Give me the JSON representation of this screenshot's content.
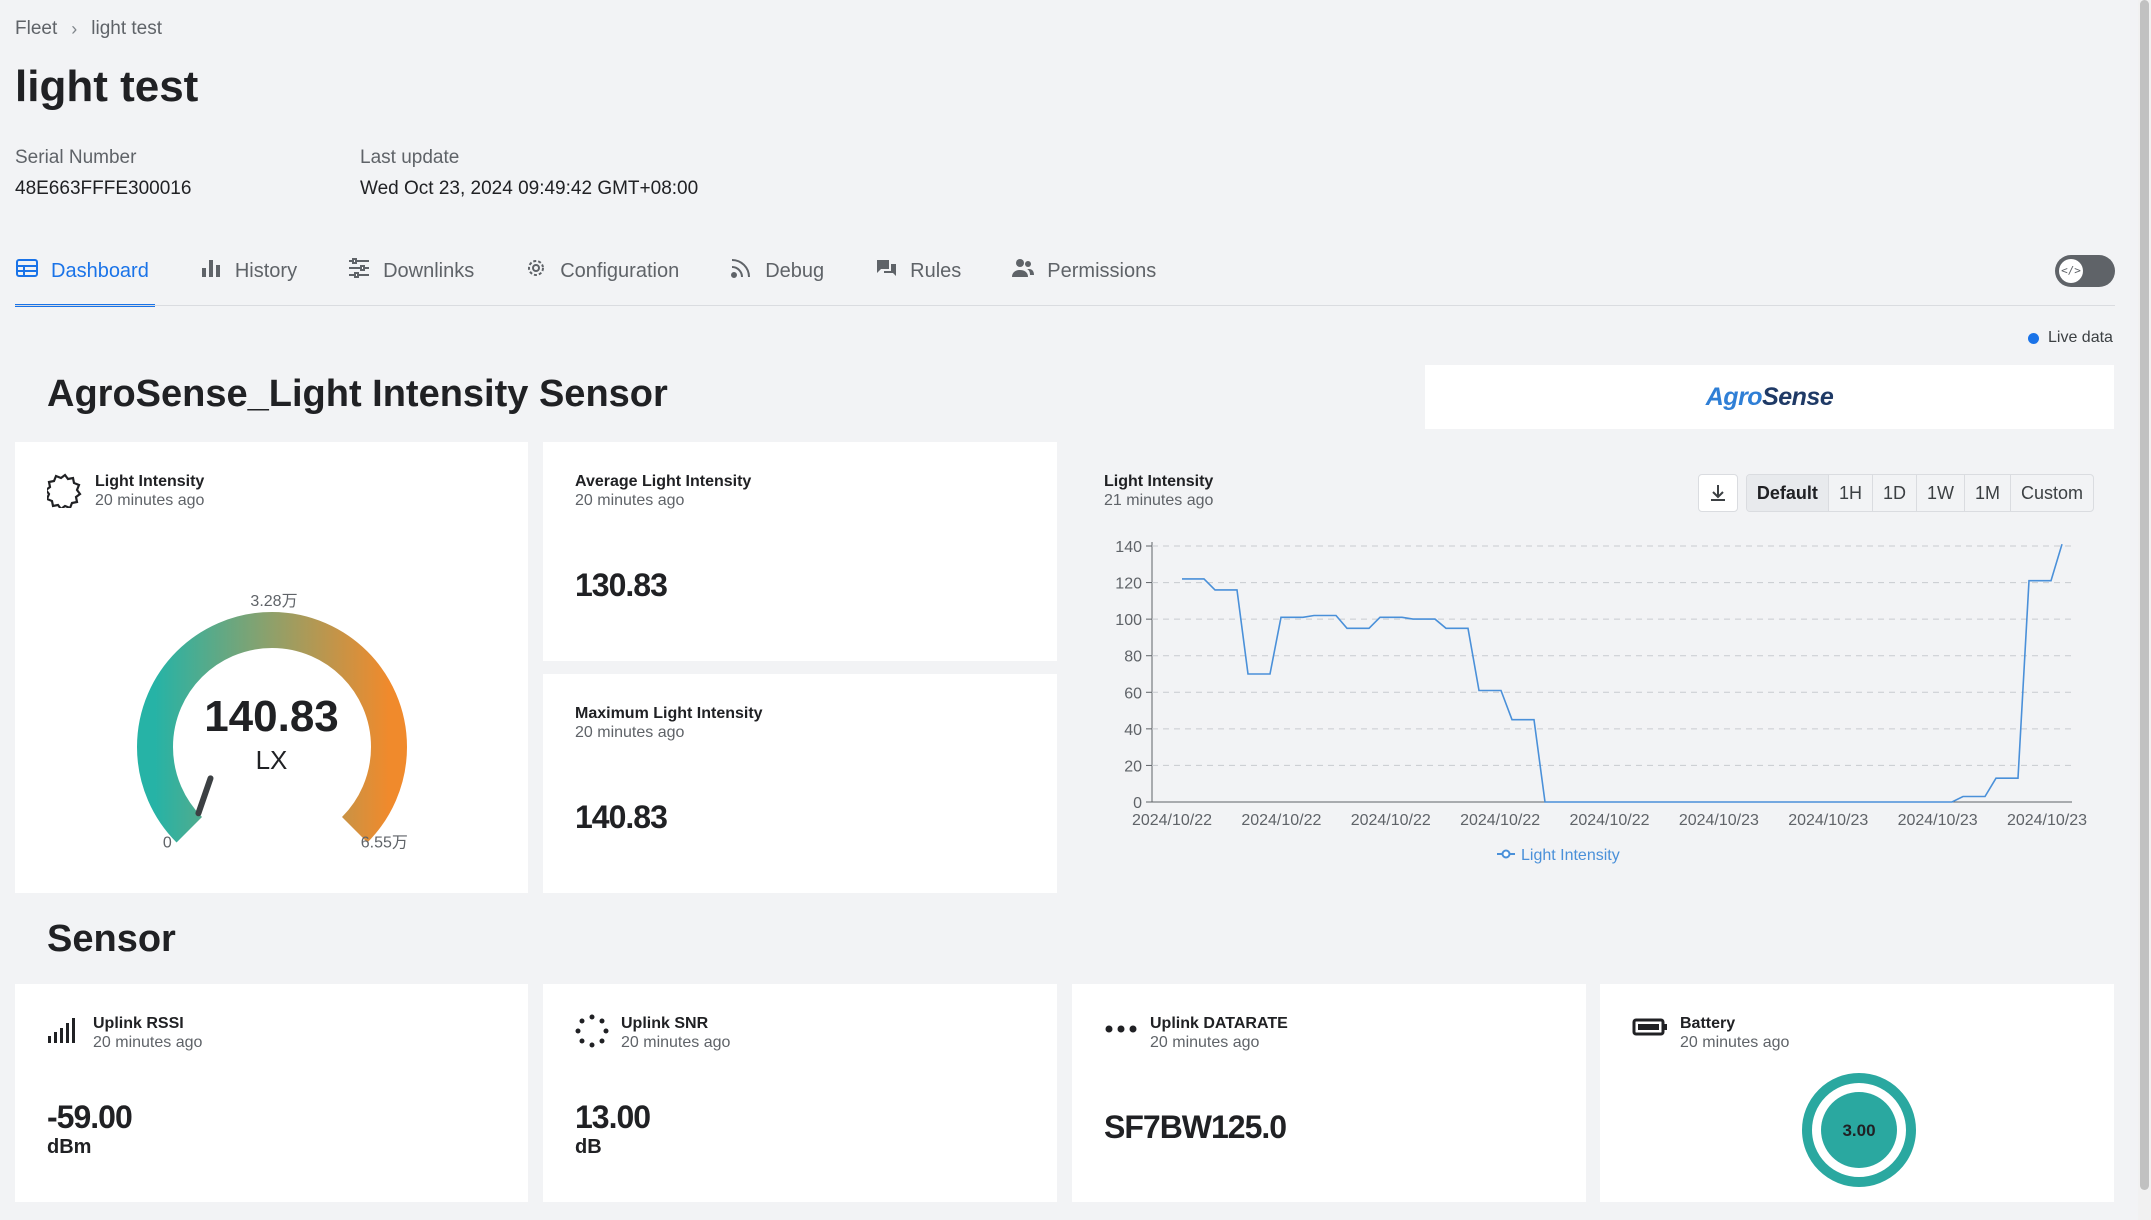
{
  "breadcrumb": {
    "root": "Fleet",
    "current": "light test"
  },
  "page": {
    "title": "light test",
    "serial_label": "Serial Number",
    "serial_value": "48E663FFFE300016",
    "update_label": "Last update",
    "update_value": "Wed Oct 23, 2024 09:49:42 GMT+08:00"
  },
  "tabs": [
    {
      "label": "Dashboard",
      "icon": "table-icon",
      "active": true
    },
    {
      "label": "History",
      "icon": "bar-chart-icon"
    },
    {
      "label": "Downlinks",
      "icon": "sliders-icon"
    },
    {
      "label": "Configuration",
      "icon": "gear-icon"
    },
    {
      "label": "Debug",
      "icon": "rss-icon"
    },
    {
      "label": "Rules",
      "icon": "chat-bubbles-icon"
    },
    {
      "label": "Permissions",
      "icon": "people-icon"
    }
  ],
  "code_toggle": {
    "icon": "code-icon",
    "on": false
  },
  "live": {
    "label": "Live data",
    "color": "#1a73e8"
  },
  "sections": {
    "main": "AgroSense_Light Intensity Sensor",
    "sensor": "Sensor"
  },
  "logo": {
    "text_a": "A",
    "text_gro": "gro",
    "text_sense": "Sense"
  },
  "gauge_card": {
    "title": "Light Intensity",
    "sub": "20 minutes ago",
    "value": "140.83",
    "unit": "LX",
    "min_label": "0",
    "mid_label": "3.28万",
    "max_label": "6.55万",
    "fraction": 0.0021,
    "colors": {
      "start": "#26b3a6",
      "mid": "#8fa06a",
      "end": "#f08a2c"
    }
  },
  "avg_card": {
    "title": "Average Light Intensity",
    "sub": "20 minutes ago",
    "value": "130.83"
  },
  "max_card": {
    "title": "Maximum Light Intensity",
    "sub": "20 minutes ago",
    "value": "140.83"
  },
  "chart_card": {
    "title": "Light Intensity",
    "sub": "21 minutes ago",
    "ranges": [
      "Default",
      "1H",
      "1D",
      "1W",
      "1M",
      "Custom"
    ],
    "active_range": "Default"
  },
  "chart_data": {
    "type": "line",
    "series": [
      {
        "name": "Light Intensity",
        "color": "#4a90d9",
        "values": [
          122,
          122,
          122,
          116,
          116,
          116,
          70,
          70,
          70,
          101,
          101,
          101,
          102,
          102,
          102,
          95,
          95,
          95,
          101,
          101,
          101,
          100,
          100,
          100,
          95,
          95,
          95,
          61,
          61,
          61,
          45,
          45,
          45,
          0,
          0,
          0,
          0,
          0,
          0,
          0,
          0,
          0,
          0,
          0,
          0,
          0,
          0,
          0,
          0,
          0,
          0,
          0,
          0,
          0,
          0,
          0,
          0,
          0,
          0,
          0,
          0,
          0,
          0,
          0,
          0,
          0,
          0,
          0,
          0,
          0,
          0,
          3,
          3,
          3,
          13,
          13,
          13,
          121,
          121,
          121,
          141
        ]
      }
    ],
    "x_tick_labels": [
      "2024/10/22",
      "2024/10/22",
      "2024/10/22",
      "2024/10/22",
      "2024/10/22",
      "2024/10/23",
      "2024/10/23",
      "2024/10/23",
      "2024/10/23"
    ],
    "y_ticks": [
      0,
      20,
      40,
      60,
      80,
      100,
      120,
      140
    ],
    "ylim": [
      0,
      140
    ],
    "grid": true,
    "legend": "bottom"
  },
  "rssi_card": {
    "title": "Uplink RSSI",
    "sub": "20 minutes ago",
    "value": "-59.00",
    "unit": "dBm"
  },
  "snr_card": {
    "title": "Uplink SNR",
    "sub": "20 minutes ago",
    "value": "13.00",
    "unit": "dB"
  },
  "dr_card": {
    "title": "Uplink DATARATE",
    "sub": "20 minutes ago",
    "value": "SF7BW125.0"
  },
  "battery_card": {
    "title": "Battery",
    "sub": "20 minutes ago",
    "value": "3.00",
    "color": "#2aa8a0"
  }
}
